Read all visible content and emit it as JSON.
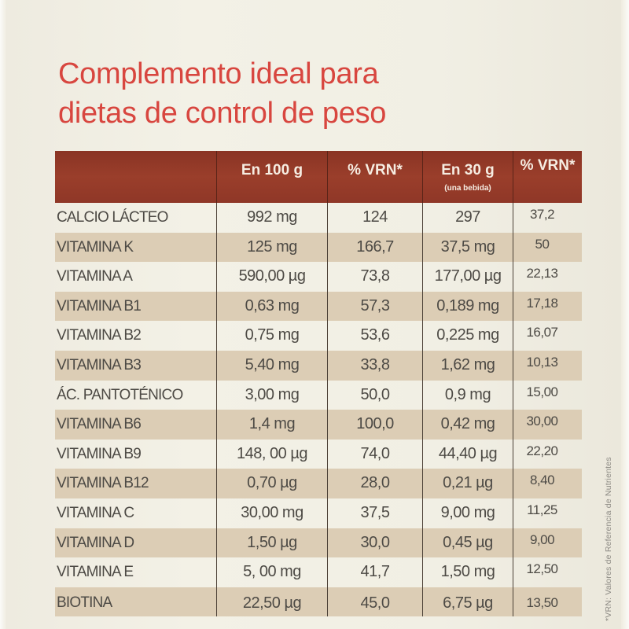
{
  "title": {
    "line1": "Complemento ideal para",
    "line2": "dietas de control de peso"
  },
  "colors": {
    "title": "#d8463f",
    "header_bg": "#923a28",
    "header_text": "#f6ede2",
    "row_shade": "#dccdb5",
    "background": "#f2efe3",
    "body_text": "#4d4a45"
  },
  "table": {
    "headers": [
      {
        "label": "",
        "sub": ""
      },
      {
        "label": "En 100 g",
        "sub": ""
      },
      {
        "label": "% VRN*",
        "sub": ""
      },
      {
        "label": "En 30 g",
        "sub": "(una bebida)"
      },
      {
        "label": "% VRN*",
        "sub": ""
      }
    ],
    "rows": [
      {
        "nutrient": "CALCIO LÁCTEO",
        "per100": "992 mg",
        "vrn100": "124",
        "per30": "297",
        "vrn30": "37,2"
      },
      {
        "nutrient": "VITAMINA K",
        "per100": "125 mg",
        "vrn100": "166,7",
        "per30": "37,5 mg",
        "vrn30": "50"
      },
      {
        "nutrient": "VITAMINA A",
        "per100": "590,00 µg",
        "vrn100": "73,8",
        "per30": "177,00 µg",
        "vrn30": "22,13"
      },
      {
        "nutrient": "VITAMINA B1",
        "per100": "0,63 mg",
        "vrn100": "57,3",
        "per30": "0,189 mg",
        "vrn30": "17,18"
      },
      {
        "nutrient": "VITAMINA B2",
        "per100": "0,75 mg",
        "vrn100": "53,6",
        "per30": "0,225 mg",
        "vrn30": "16,07"
      },
      {
        "nutrient": "VITAMINA B3",
        "per100": "5,40 mg",
        "vrn100": "33,8",
        "per30": "1,62 mg",
        "vrn30": "10,13"
      },
      {
        "nutrient": "ÁC. PANTOTÉNICO",
        "per100": "3,00 mg",
        "vrn100": "50,0",
        "per30": "0,9 mg",
        "vrn30": "15,00"
      },
      {
        "nutrient": "VITAMINA B6",
        "per100": "1,4 mg",
        "vrn100": "100,0",
        "per30": "0,42 mg",
        "vrn30": "30,00"
      },
      {
        "nutrient": "VITAMINA B9",
        "per100": "148, 00 µg",
        "vrn100": "74,0",
        "per30": "44,40 µg",
        "vrn30": "22,20"
      },
      {
        "nutrient": "VITAMINA B12",
        "per100": "0,70 µg",
        "vrn100": "28,0",
        "per30": "0,21 µg",
        "vrn30": "8,40"
      },
      {
        "nutrient": "VITAMINA C",
        "per100": "30,00 mg",
        "vrn100": "37,5",
        "per30": "9,00 mg",
        "vrn30": "11,25"
      },
      {
        "nutrient": "VITAMINA D",
        "per100": "1,50 µg",
        "vrn100": "30,0",
        "per30": "0,45 µg",
        "vrn30": "9,00"
      },
      {
        "nutrient": "VITAMINA E",
        "per100": "5, 00 mg",
        "vrn100": "41,7",
        "per30": "1,50 mg",
        "vrn30": "12,50"
      },
      {
        "nutrient": "BIOTINA",
        "per100": "22,50 µg",
        "vrn100": "45,0",
        "per30": "6,75 µg",
        "vrn30": "13,50"
      }
    ]
  },
  "footnote": "*VRN: Valores de Referencia de Nutrientes"
}
